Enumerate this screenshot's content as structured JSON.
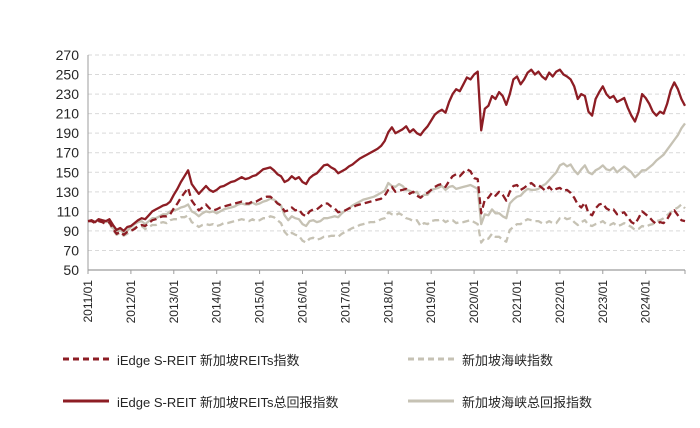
{
  "chart_data": {
    "type": "line",
    "title": "",
    "xlabel": "",
    "ylabel": "",
    "ylim": [
      50,
      270
    ],
    "y_ticks": [
      50,
      70,
      90,
      110,
      130,
      150,
      170,
      190,
      210,
      230,
      250,
      270
    ],
    "grid": "horizontal-dashed",
    "legend_position": "bottom",
    "x_frequency": "monthly",
    "x_start": "2011/01",
    "x_end": "2024/12",
    "x_tick_labels": [
      "2011/01",
      "2012/01",
      "2013/01",
      "2014/01",
      "2015/01",
      "2016/01",
      "2017/01",
      "2018/01",
      "2019/01",
      "2020/01",
      "2021/01",
      "2022/01",
      "2023/01",
      "2024/01"
    ],
    "colors": {
      "reit_red": "#8D1D24",
      "sti_beige": "#C6C2B4",
      "gridline": "#D9D9D9",
      "axis": "#9C9C9C",
      "text": "#262626"
    },
    "series": [
      {
        "name": "iEdge S-REIT 新加坡REITs指数",
        "style": "dashed",
        "color": "#8D1D24",
        "values": [
          100,
          100,
          98,
          100,
          99,
          97,
          99,
          92,
          87,
          89,
          86,
          89,
          90,
          92,
          95,
          96,
          95,
          98,
          101,
          102,
          104,
          105,
          105,
          107,
          113,
          118,
          124,
          129,
          134,
          121,
          116,
          111,
          114,
          117,
          113,
          111,
          112,
          114,
          115,
          116,
          117,
          118,
          119,
          120,
          118,
          118,
          120,
          120,
          122,
          124,
          125,
          125,
          122,
          118,
          116,
          110,
          111,
          114,
          111,
          112,
          107,
          105,
          110,
          112,
          112,
          115,
          118,
          118,
          115,
          113,
          109,
          110,
          111,
          113,
          114,
          116,
          117,
          118,
          119,
          120,
          121,
          122,
          123,
          126,
          132,
          135,
          130,
          131,
          132,
          133,
          128,
          130,
          126,
          124,
          127,
          129,
          132,
          135,
          137,
          138,
          135,
          141,
          146,
          148,
          146,
          150,
          153,
          151,
          144,
          143,
          108,
          122,
          124,
          129,
          126,
          130,
          127,
          121,
          130,
          136,
          137,
          132,
          134,
          137,
          139,
          136,
          137,
          134,
          131,
          135,
          131,
          133,
          134,
          131,
          132,
          129,
          124,
          117,
          114,
          119,
          108,
          106,
          113,
          117,
          118,
          113,
          111,
          112,
          107,
          108,
          109,
          104,
          99,
          97,
          103,
          110,
          107,
          104,
          100,
          97,
          99,
          98,
          102,
          108,
          111,
          106,
          101,
          100
        ]
      },
      {
        "name": "新加坡海峡指数",
        "style": "dashed",
        "color": "#C6C2B4",
        "values": [
          100,
          100,
          98,
          100,
          99,
          97,
          98,
          91,
          86,
          88,
          85,
          87,
          90,
          93,
          95,
          95,
          92,
          94,
          96,
          96,
          98,
          99,
          98,
          101,
          102,
          102,
          104,
          104,
          106,
          99,
          97,
          94,
          96,
          97,
          96,
          97,
          95,
          96,
          98,
          98,
          99,
          100,
          101,
          102,
          101,
          100,
          102,
          100,
          101,
          103,
          103,
          105,
          104,
          101,
          98,
          89,
          85,
          88,
          86,
          85,
          80,
          78,
          82,
          83,
          81,
          82,
          84,
          84,
          85,
          85,
          84,
          87,
          89,
          91,
          93,
          94,
          96,
          97,
          98,
          99,
          99,
          100,
          102,
          103,
          109,
          107,
          106,
          108,
          106,
          103,
          102,
          100,
          101,
          95,
          98,
          97,
          100,
          101,
          101,
          102,
          99,
          101,
          101,
          98,
          99,
          99,
          100,
          101,
          99,
          97,
          78,
          83,
          82,
          87,
          84,
          84,
          81,
          79,
          91,
          94,
          97,
          97,
          100,
          102,
          101,
          100,
          100,
          98,
          98,
          100,
          98,
          98,
          103,
          104,
          102,
          103,
          99,
          96,
          99,
          101,
          96,
          95,
          97,
          98,
          100,
          97,
          96,
          98,
          95,
          96,
          98,
          96,
          94,
          91,
          92,
          95,
          94,
          96,
          97,
          100,
          101,
          103,
          106,
          109,
          112,
          114,
          117,
          113
        ]
      },
      {
        "name": "iEdge S-REIT 新加坡REITs总回报指数",
        "style": "solid",
        "color": "#8D1D24",
        "values": [
          100,
          101,
          99,
          102,
          101,
          100,
          102,
          96,
          91,
          93,
          90,
          94,
          95,
          98,
          101,
          103,
          102,
          106,
          110,
          112,
          114,
          116,
          117,
          120,
          127,
          133,
          140,
          146,
          152,
          138,
          133,
          128,
          132,
          136,
          132,
          130,
          132,
          135,
          136,
          138,
          140,
          141,
          143,
          145,
          143,
          144,
          146,
          147,
          150,
          153,
          154,
          155,
          152,
          148,
          146,
          140,
          142,
          146,
          143,
          145,
          140,
          138,
          144,
          147,
          149,
          153,
          157,
          158,
          155,
          153,
          149,
          151,
          153,
          156,
          158,
          161,
          164,
          166,
          168,
          170,
          172,
          174,
          177,
          182,
          191,
          196,
          190,
          192,
          194,
          197,
          191,
          194,
          190,
          188,
          193,
          197,
          203,
          209,
          212,
          214,
          211,
          222,
          230,
          235,
          233,
          240,
          247,
          245,
          250,
          253,
          193,
          215,
          218,
          228,
          225,
          232,
          228,
          219,
          230,
          245,
          248,
          240,
          245,
          252,
          255,
          250,
          253,
          248,
          245,
          252,
          248,
          253,
          255,
          250,
          248,
          245,
          238,
          225,
          230,
          228,
          212,
          208,
          225,
          232,
          238,
          230,
          226,
          228,
          222,
          224,
          226,
          216,
          208,
          202,
          212,
          230,
          226,
          220,
          212,
          208,
          212,
          210,
          220,
          234,
          242,
          235,
          225,
          218
        ]
      },
      {
        "name": "新加坡海峡总回报指数",
        "style": "solid",
        "color": "#C6C2B4",
        "values": [
          100,
          101,
          99,
          102,
          101,
          99,
          100,
          93,
          88,
          91,
          88,
          90,
          94,
          97,
          99,
          100,
          97,
          100,
          103,
          103,
          105,
          107,
          107,
          110,
          111,
          112,
          114,
          115,
          117,
          110,
          108,
          105,
          108,
          110,
          109,
          110,
          108,
          110,
          112,
          113,
          114,
          115,
          117,
          118,
          117,
          117,
          119,
          117,
          118,
          120,
          121,
          123,
          122,
          119,
          116,
          106,
          101,
          105,
          103,
          102,
          97,
          95,
          100,
          101,
          99,
          100,
          103,
          103,
          104,
          105,
          104,
          108,
          111,
          113,
          116,
          118,
          120,
          122,
          123,
          124,
          125,
          127,
          129,
          131,
          139,
          136,
          135,
          138,
          136,
          132,
          131,
          129,
          130,
          124,
          127,
          127,
          132,
          133,
          134,
          136,
          132,
          135,
          136,
          133,
          134,
          135,
          136,
          137,
          135,
          133,
          97,
          107,
          106,
          112,
          108,
          108,
          105,
          103,
          118,
          122,
          125,
          126,
          130,
          133,
          132,
          132,
          133,
          136,
          138,
          142,
          146,
          150,
          157,
          159,
          156,
          158,
          152,
          148,
          153,
          157,
          150,
          148,
          152,
          154,
          157,
          153,
          152,
          155,
          150,
          153,
          156,
          153,
          150,
          145,
          148,
          152,
          152,
          155,
          158,
          162,
          165,
          168,
          173,
          178,
          183,
          188,
          195,
          200
        ]
      }
    ]
  },
  "legend": {
    "row1_col1": "iEdge S-REIT 新加坡REITs指数",
    "row1_col2": "新加坡海峡指数",
    "row2_col1": "iEdge S-REIT 新加坡REITs总回报指数",
    "row2_col2": "新加坡海峡总回报指数"
  }
}
